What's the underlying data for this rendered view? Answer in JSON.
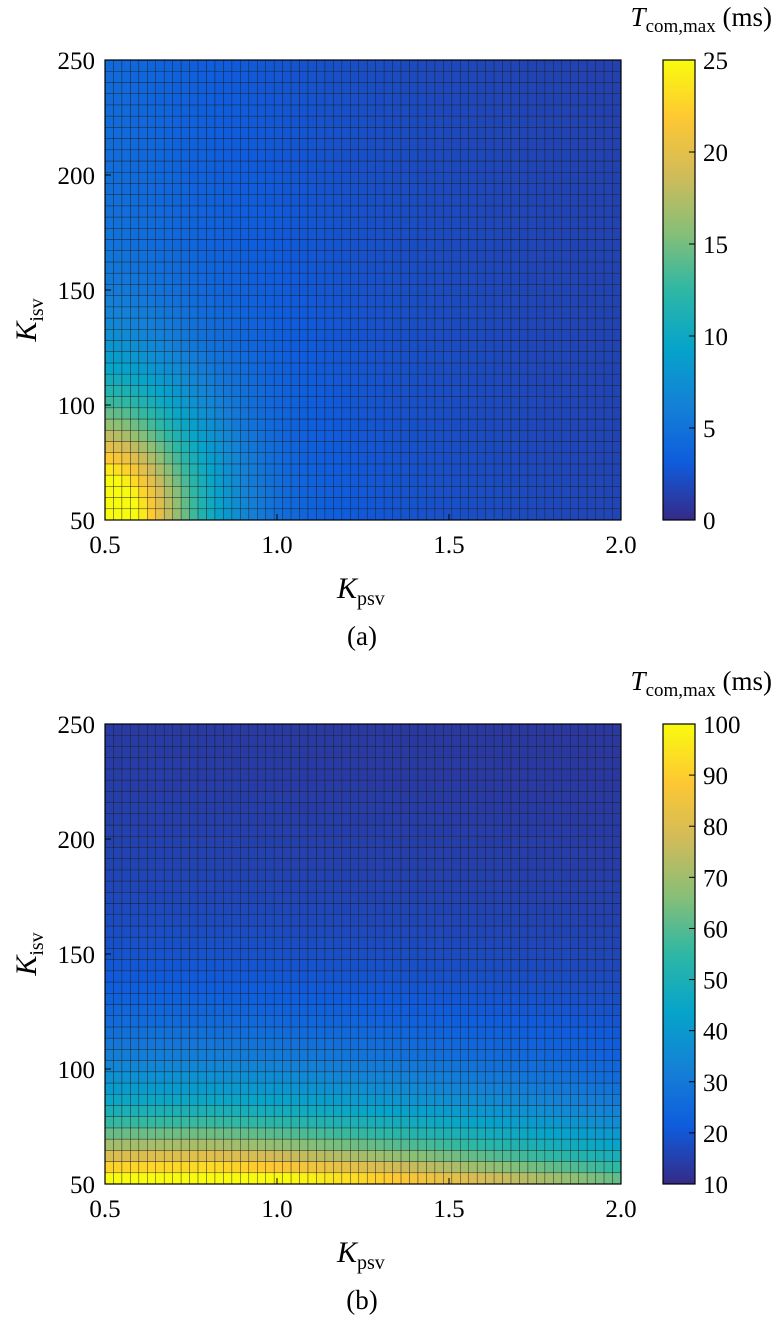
{
  "chart_data": [
    {
      "type": "heatmap",
      "panel_label": "(a)",
      "xlabel": {
        "main": "K",
        "sub": "psv"
      },
      "ylabel": {
        "main": "K",
        "sub": "isv"
      },
      "xlim": [
        0.5,
        2.0
      ],
      "ylim": [
        50,
        250
      ],
      "x_ticks": [
        0.5,
        1.0,
        1.5,
        2.0
      ],
      "x_tick_labels": [
        "0.5",
        "1.0",
        "1.5",
        "2.0"
      ],
      "y_ticks": [
        50,
        100,
        150,
        200,
        250
      ],
      "y_tick_labels": [
        "50",
        "100",
        "150",
        "200",
        "250"
      ],
      "grid_size": {
        "x": 61,
        "y": 41
      },
      "colorbar": {
        "title": {
          "main": "T",
          "sub": "com,max",
          "unit": " (ms)"
        },
        "range": [
          0,
          25
        ],
        "ticks": [
          0,
          5,
          10,
          15,
          20,
          25
        ],
        "tick_labels": [
          "0",
          "5",
          "10",
          "15",
          "20",
          "25"
        ],
        "colormap": "parula"
      },
      "surface_model": {
        "base": 1.0,
        "amp": 24.5,
        "x0": 0.5,
        "y0": 50,
        "x_scale": 0.16,
        "y_scale": 30,
        "power": 1.6,
        "x_trend": 5.2,
        "x_trend_scale": 0.75
      }
    },
    {
      "type": "heatmap",
      "panel_label": "(b)",
      "xlabel": {
        "main": "K",
        "sub": "psv"
      },
      "ylabel": {
        "main": "K",
        "sub": "isv"
      },
      "xlim": [
        0.5,
        2.0
      ],
      "ylim": [
        50,
        250
      ],
      "x_ticks": [
        0.5,
        1.0,
        1.5,
        2.0
      ],
      "x_tick_labels": [
        "0.5",
        "1.0",
        "1.5",
        "2.0"
      ],
      "y_ticks": [
        50,
        100,
        150,
        200,
        250
      ],
      "y_tick_labels": [
        "50",
        "100",
        "150",
        "200",
        "250"
      ],
      "grid_size": {
        "x": 61,
        "y": 41
      },
      "colorbar": {
        "title": {
          "main": "T",
          "sub": "com,max",
          "unit": " (ms)"
        },
        "range": [
          10,
          100
        ],
        "ticks": [
          10,
          20,
          30,
          40,
          50,
          60,
          70,
          80,
          90,
          100
        ],
        "tick_labels": [
          "10",
          "20",
          "30",
          "40",
          "50",
          "60",
          "70",
          "80",
          "90",
          "100"
        ],
        "colormap": "parula"
      },
      "surface_model": {
        "base": 12.0,
        "amp": 88.0,
        "y0": 50,
        "y_scale": 28,
        "x_peak": 0.8,
        "x_spread": 1.1,
        "x_drop": 0.45
      }
    }
  ],
  "colors": {
    "parula": [
      "#352a87",
      "#0f5cdd",
      "#1481d6",
      "#06a4ca",
      "#2eb7a4",
      "#87bf77",
      "#d1bb59",
      "#fec832",
      "#f9fb0e"
    ],
    "cell_edge": "#1a1a1a"
  }
}
